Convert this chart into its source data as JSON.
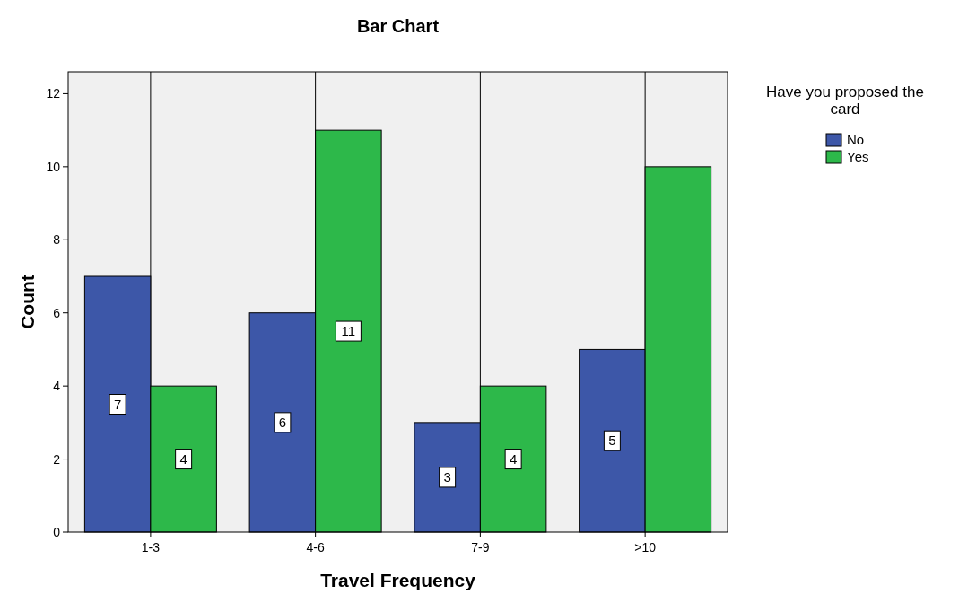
{
  "chart_data": {
    "type": "bar",
    "title": "Bar Chart",
    "xlabel": "Travel Frequency",
    "ylabel": "Count",
    "legend_title": "Have you proposed the card",
    "categories": [
      "1-3",
      "4-6",
      "7-9",
      ">10"
    ],
    "series": [
      {
        "name": "No",
        "color": "#3d57a8",
        "values": [
          7,
          6,
          3,
          5
        ],
        "value_labels": [
          "7",
          "6",
          "3",
          "5"
        ]
      },
      {
        "name": "Yes",
        "color": "#2db84a",
        "values": [
          4,
          11,
          4,
          10
        ],
        "value_labels": [
          "4",
          "11",
          "4",
          null
        ]
      }
    ],
    "ylim": [
      0,
      12.6
    ],
    "yticks": [
      0,
      2,
      4,
      6,
      8,
      10,
      12
    ],
    "grid": "x",
    "legend": "right"
  }
}
